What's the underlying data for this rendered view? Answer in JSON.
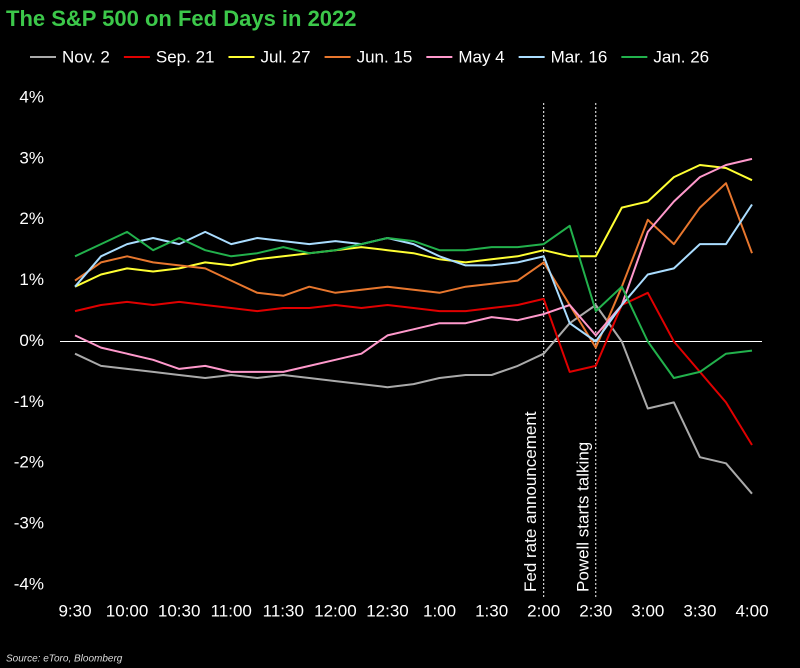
{
  "chart_data": {
    "type": "line",
    "title": "The S&P 500 on Fed Days in 2022",
    "source": "Source: eToro, Bloomberg",
    "categories": [
      "9:30",
      null,
      "10:00",
      null,
      "10:30",
      null,
      "11:00",
      null,
      "11:30",
      null,
      "12:00",
      null,
      "12:30",
      null,
      "1:00",
      null,
      "1:30",
      null,
      "2:00",
      null,
      "2:30",
      null,
      "3:00",
      null,
      "3:30",
      null,
      "4:00"
    ],
    "ylim": [
      -4,
      4
    ],
    "yticks": [
      {
        "value": -4,
        "label": "-4%"
      },
      {
        "value": -3,
        "label": "-3%"
      },
      {
        "value": -2,
        "label": "-2%"
      },
      {
        "value": -1,
        "label": "-1%"
      },
      {
        "value": 0,
        "label": "0%"
      },
      {
        "value": 1,
        "label": "1%"
      },
      {
        "value": 2,
        "label": "2%"
      },
      {
        "value": 3,
        "label": "3%"
      },
      {
        "value": 4,
        "label": "4%"
      }
    ],
    "zero_line": true,
    "legend": "top",
    "annotations": [
      {
        "text": "Fed rate announcement",
        "x": "2:00"
      },
      {
        "text": "Powell starts talking",
        "x": "2:30"
      }
    ],
    "series": [
      {
        "name": "Nov. 2",
        "color": "#aaaaaa",
        "values": [
          -0.2,
          -0.4,
          -0.45,
          -0.5,
          -0.55,
          -0.6,
          -0.55,
          -0.6,
          -0.55,
          -0.6,
          -0.65,
          -0.7,
          -0.75,
          -0.7,
          -0.6,
          -0.55,
          -0.55,
          -0.4,
          -0.2,
          0.3,
          0.6,
          0.0,
          -1.1,
          -1.0,
          -1.9,
          -2.0,
          -2.5
        ]
      },
      {
        "name": "Sep. 21",
        "color": "#e00000",
        "values": [
          0.5,
          0.6,
          0.65,
          0.6,
          0.65,
          0.6,
          0.55,
          0.5,
          0.55,
          0.55,
          0.6,
          0.55,
          0.6,
          0.55,
          0.5,
          0.5,
          0.55,
          0.6,
          0.7,
          -0.5,
          -0.4,
          0.6,
          0.8,
          0.0,
          -0.5,
          -1.0,
          -1.7
        ]
      },
      {
        "name": "Jul. 27",
        "color": "#ffff33",
        "values": [
          0.9,
          1.1,
          1.2,
          1.15,
          1.2,
          1.3,
          1.25,
          1.35,
          1.4,
          1.45,
          1.5,
          1.55,
          1.5,
          1.45,
          1.35,
          1.3,
          1.35,
          1.4,
          1.5,
          1.4,
          1.4,
          2.2,
          2.3,
          2.7,
          2.9,
          2.85,
          2.65
        ]
      },
      {
        "name": "Jun. 15",
        "color": "#e8772e",
        "values": [
          1.0,
          1.3,
          1.4,
          1.3,
          1.25,
          1.2,
          1.0,
          0.8,
          0.75,
          0.9,
          0.8,
          0.85,
          0.9,
          0.85,
          0.8,
          0.9,
          0.95,
          1.0,
          1.3,
          0.6,
          -0.1,
          0.9,
          2.0,
          1.6,
          2.2,
          2.6,
          1.45
        ]
      },
      {
        "name": "May 4",
        "color": "#ff99cc",
        "values": [
          0.1,
          -0.1,
          -0.2,
          -0.3,
          -0.45,
          -0.4,
          -0.5,
          -0.5,
          -0.5,
          -0.4,
          -0.3,
          -0.2,
          0.1,
          0.2,
          0.3,
          0.3,
          0.4,
          0.35,
          0.45,
          0.6,
          0.1,
          0.6,
          1.8,
          2.3,
          2.7,
          2.9,
          3.0
        ]
      },
      {
        "name": "Mar. 16",
        "color": "#aaddff",
        "values": [
          0.9,
          1.4,
          1.6,
          1.7,
          1.6,
          1.8,
          1.6,
          1.7,
          1.65,
          1.6,
          1.65,
          1.6,
          1.7,
          1.6,
          1.4,
          1.25,
          1.25,
          1.3,
          1.4,
          0.3,
          0.0,
          0.6,
          1.1,
          1.2,
          1.6,
          1.6,
          2.25
        ]
      },
      {
        "name": "Jan. 26",
        "color": "#22b14c",
        "values": [
          1.4,
          1.6,
          1.8,
          1.5,
          1.7,
          1.5,
          1.4,
          1.45,
          1.55,
          1.45,
          1.5,
          1.6,
          1.7,
          1.65,
          1.5,
          1.5,
          1.55,
          1.55,
          1.6,
          1.9,
          0.5,
          0.9,
          0.0,
          -0.6,
          -0.5,
          -0.2,
          -0.15
        ]
      }
    ]
  }
}
